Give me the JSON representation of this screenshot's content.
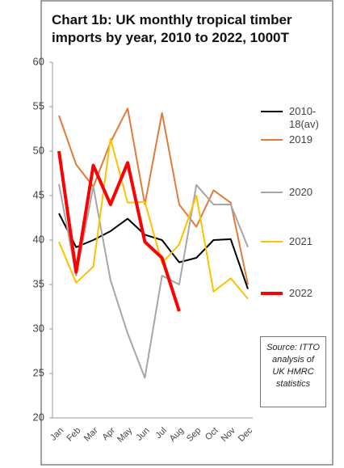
{
  "chart_data": {
    "type": "line",
    "title": "Chart 1b: UK monthly tropical timber imports by year, 2010 to 2022, 1000T",
    "categories": [
      "Jan",
      "Feb",
      "Mar",
      "Apr",
      "May",
      "Jun",
      "Jul",
      "Aug",
      "Sep",
      "Oct",
      "Nov",
      "Dec"
    ],
    "series": [
      {
        "name": "2010-18(av)",
        "color": "#000000",
        "values": [
          43,
          39.2,
          40,
          41,
          42.4,
          40.6,
          40,
          37.5,
          38,
          40,
          40.1,
          34.5
        ]
      },
      {
        "name": "2019",
        "color": "#e07b39",
        "values": [
          54,
          48.5,
          46,
          51,
          54.8,
          44,
          54.3,
          44,
          41.5,
          45.6,
          44.2,
          35
        ]
      },
      {
        "name": "2020",
        "color": "#a6a6a6",
        "values": [
          46.3,
          36,
          46,
          35.5,
          29.5,
          24.5,
          36,
          35,
          46.2,
          44,
          44,
          39.2
        ]
      },
      {
        "name": "2021",
        "color": "#ffc000",
        "values": [
          39.8,
          35.2,
          37,
          51.4,
          44.2,
          44.3,
          37.4,
          39.5,
          45,
          34.2,
          35.7,
          33.4
        ]
      },
      {
        "name": "2022",
        "color": "#ff0000",
        "values": [
          50,
          36.4,
          48.4,
          44,
          48.7,
          39.8,
          38,
          32,
          null,
          null,
          null,
          null
        ]
      }
    ],
    "ylim": [
      20,
      60
    ],
    "yticks": [
      20,
      25,
      30,
      35,
      40,
      45,
      50,
      55,
      60
    ],
    "annotation": "Source: ITTO analysis of UK HMRC statistics",
    "grid": false
  }
}
